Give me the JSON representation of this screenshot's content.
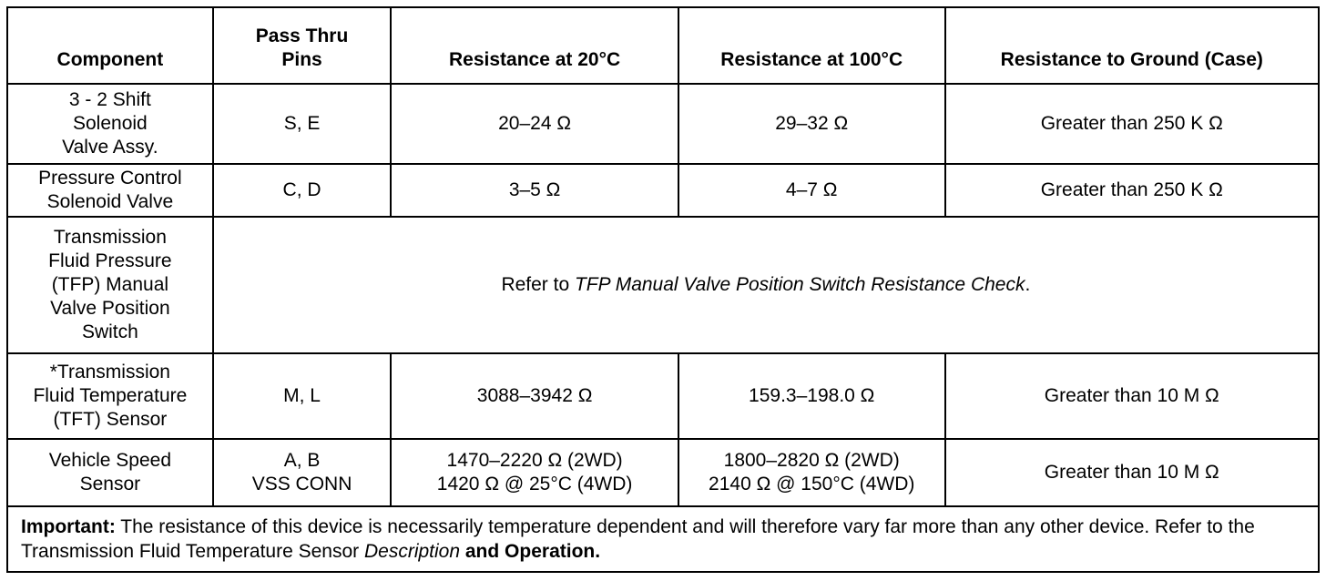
{
  "table": {
    "header": [
      [
        "Component"
      ],
      [
        "Pass Thru",
        "Pins"
      ],
      [
        "Resistance at 20°C"
      ],
      [
        "Resistance at 100°C"
      ],
      [
        "Resistance to Ground (Case)"
      ]
    ],
    "rows": [
      [
        [
          "3 - 2 Shift",
          "Solenoid",
          "Valve Assy."
        ],
        [
          "S, E"
        ],
        [
          "20–24 Ω"
        ],
        [
          "29–32 Ω"
        ],
        [
          "Greater than 250 K Ω"
        ]
      ],
      [
        [
          "Pressure Control",
          "Solenoid Valve"
        ],
        [
          "C, D"
        ],
        [
          "3–5 Ω"
        ],
        [
          "4–7 Ω"
        ],
        [
          "Greater than 250 K Ω"
        ]
      ],
      [
        [
          "Transmission",
          "Fluid Pressure",
          "(TFP) Manual",
          "Valve Position",
          "Switch"
        ],
        [
          "Refer to ",
          "TFP Manual Valve Position Switch Resistance Check",
          "."
        ]
      ],
      [
        [
          "*Transmission",
          "Fluid Temperature",
          "(TFT) Sensor"
        ],
        [
          "M, L"
        ],
        [
          "3088–3942 Ω"
        ],
        [
          "159.3–198.0 Ω"
        ],
        [
          "Greater than 10 M Ω"
        ]
      ],
      [
        [
          "Vehicle Speed",
          "Sensor"
        ],
        [
          "A, B",
          "VSS CONN"
        ],
        [
          "1470–2220 Ω (2WD)",
          "1420 Ω @ 25°C (4WD)"
        ],
        [
          "1800–2820 Ω (2WD)",
          "2140 Ω @ 150°C (4WD)"
        ],
        [
          "Greater than 10 M Ω"
        ]
      ]
    ],
    "note": [
      "Important:",
      " The resistance of this device is necessarily temperature dependent and will therefore vary far more than any other device. Refer to the Transmission Fluid Temperature Sensor ",
      "Description",
      " and Operation."
    ]
  }
}
